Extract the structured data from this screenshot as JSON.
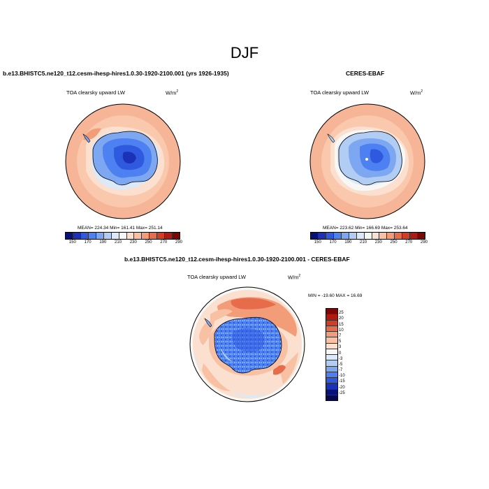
{
  "figure": {
    "title": "DJF"
  },
  "panels": [
    {
      "id": "model",
      "title": "b.e13.BHISTC5.ne120_t12.cesm-ihesp-hires1.0.30-1920-2100.001 (yrs 1926-1935)",
      "variable": "TOA clearsky upward LW",
      "units_base": "W/m",
      "units_exp": "2",
      "stats": "MEAN= 224.34  Min= 161.41  Max= 251.14"
    },
    {
      "id": "obs",
      "title": "CERES-EBAF",
      "variable": "TOA clearsky upward LW",
      "units_base": "W/m",
      "units_exp": "2",
      "stats": "MEAN= 223.62  Min= 166.69  Max= 253.64"
    },
    {
      "id": "diff",
      "title": "b.e13.BHISTC5.ne120_t12.cesm-ihesp-hires1.0.30-1920-2100.001 - CERES-EBAF",
      "variable": "TOA clearsky upward LW",
      "units_base": "W/m",
      "units_exp": "2",
      "stats": "MIN = -19.60  MAX =  16.69"
    }
  ],
  "colorbars": {
    "absolute": {
      "orientation": "horizontal",
      "labels": [
        "150",
        "170",
        "190",
        "210",
        "230",
        "250",
        "270",
        "290"
      ],
      "colors": [
        "#08117a",
        "#1a31b8",
        "#2f5ae0",
        "#4d80f0",
        "#7ea7f2",
        "#b2cdf4",
        "#dce9f8",
        "#f7f7f5",
        "#fbe0cf",
        "#f8c1a3",
        "#f29c78",
        "#e76c4c",
        "#d33d26",
        "#b01a10",
        "#7b0805"
      ]
    },
    "difference": {
      "orientation": "vertical",
      "labels": [
        "25",
        "20",
        "15",
        "10",
        "7",
        "5",
        "3",
        "0",
        "-3",
        "-5",
        "-7",
        "-10",
        "-15",
        "-20",
        "-25"
      ],
      "colors": [
        "#7b0805",
        "#b01a10",
        "#d33d26",
        "#e76c4c",
        "#f29c78",
        "#f8c1a3",
        "#fbe0cf",
        "#f7f7f5",
        "#dce9f8",
        "#b2cdf4",
        "#7ea7f2",
        "#4d80f0",
        "#2f5ae0",
        "#1a31b8",
        "#08117a",
        "#050a4f"
      ]
    }
  },
  "chart_data": [
    {
      "type": "heatmap",
      "title": "b.e13.BHISTC5.ne120_t12.cesm-ihesp-hires1.0.30-1920-2100.001 (yrs 1926-1935)",
      "subtitle": "TOA clearsky upward LW",
      "projection": "south polar stereographic",
      "mean": 224.34,
      "min": 161.41,
      "max": 251.14,
      "colorbar_ticks": [
        150,
        170,
        190,
        210,
        230,
        250,
        270,
        290
      ]
    },
    {
      "type": "heatmap",
      "title": "CERES-EBAF",
      "subtitle": "TOA clearsky upward LW",
      "projection": "south polar stereographic",
      "mean": 223.62,
      "min": 166.69,
      "max": 253.64,
      "colorbar_ticks": [
        150,
        170,
        190,
        210,
        230,
        250,
        270,
        290
      ]
    },
    {
      "type": "heatmap",
      "title": "b.e13.BHISTC5.ne120_t12.cesm-ihesp-hires1.0.30-1920-2100.001 - CERES-EBAF",
      "subtitle": "TOA clearsky upward LW",
      "projection": "south polar stereographic",
      "min": -19.6,
      "max": 16.69,
      "colorbar_ticks": [
        25,
        20,
        15,
        10,
        7,
        5,
        3,
        0,
        -3,
        -5,
        -7,
        -10,
        -15,
        -20,
        -25
      ]
    }
  ]
}
